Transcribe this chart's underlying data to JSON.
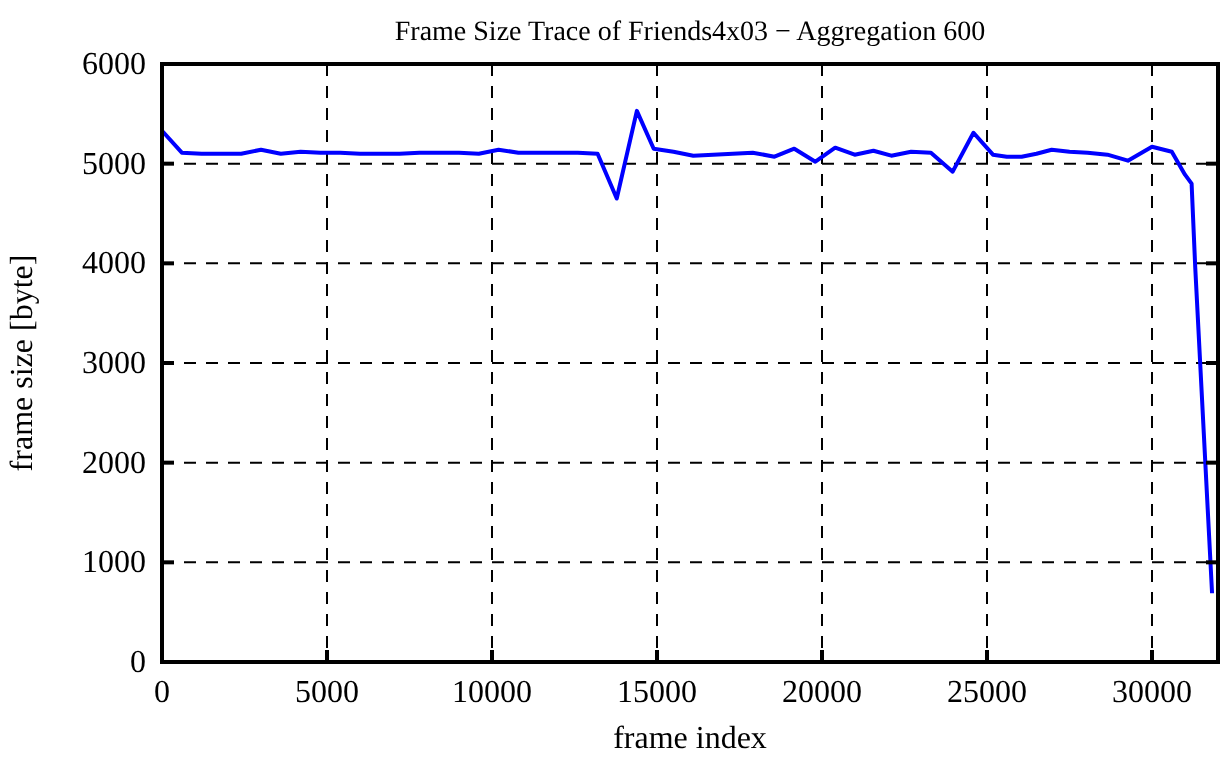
{
  "chart_data": {
    "type": "line",
    "title": "Frame Size Trace of Friends4x03 − Aggregation 600",
    "xlabel": "frame index",
    "ylabel": "frame size [byte]",
    "x": [
      0,
      600,
      1200,
      1800,
      2400,
      3000,
      3600,
      4200,
      4800,
      5400,
      6000,
      6600,
      7200,
      7800,
      8400,
      9000,
      9600,
      10200,
      10800,
      11400,
      12000,
      12600,
      13200,
      13780,
      14390,
      14900,
      15500,
      16100,
      16700,
      17300,
      17900,
      18560,
      19160,
      19800,
      20400,
      20990,
      21560,
      22100,
      22700,
      23300,
      23960,
      24590,
      25180,
      25600,
      26050,
      26500,
      26960,
      27500,
      28050,
      28650,
      29270,
      30000,
      30600,
      31000,
      31200,
      31310,
      31820
    ],
    "series": [
      {
        "color": "#0000ff",
        "values": [
          5330,
          5110,
          5100,
          5100,
          5100,
          5140,
          5100,
          5120,
          5110,
          5110,
          5100,
          5100,
          5100,
          5110,
          5110,
          5110,
          5100,
          5140,
          5110,
          5110,
          5110,
          5110,
          5100,
          4650,
          5530,
          5150,
          5120,
          5080,
          5090,
          5100,
          5110,
          5070,
          5150,
          5020,
          5160,
          5090,
          5130,
          5080,
          5120,
          5110,
          4920,
          5310,
          5090,
          5070,
          5070,
          5100,
          5140,
          5120,
          5110,
          5090,
          5030,
          5170,
          5120,
          4890,
          4800,
          3960,
          690
        ]
      }
    ],
    "xlim": [
      0,
      32000
    ],
    "ylim": [
      0,
      6000
    ],
    "xticks": [
      0,
      5000,
      10000,
      15000,
      20000,
      25000,
      30000
    ],
    "yticks": [
      0,
      1000,
      2000,
      3000,
      4000,
      5000,
      6000
    ],
    "grid": true,
    "line_style": "solid",
    "marker": "none"
  }
}
